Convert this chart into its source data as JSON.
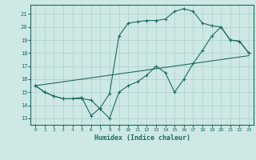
{
  "title": "",
  "xlabel": "Humidex (Indice chaleur)",
  "background_color": "#cde8e5",
  "grid_color": "#aacfcc",
  "line_color": "#1e6b65",
  "xlim": [
    -0.5,
    23.5
  ],
  "ylim": [
    12.5,
    21.7
  ],
  "yticks": [
    13,
    14,
    15,
    16,
    17,
    18,
    19,
    20,
    21
  ],
  "xticks": [
    0,
    1,
    2,
    3,
    4,
    5,
    6,
    7,
    8,
    9,
    10,
    11,
    12,
    13,
    14,
    15,
    16,
    17,
    18,
    19,
    20,
    21,
    22,
    23
  ],
  "line1_x": [
    0,
    1,
    2,
    3,
    4,
    5,
    6,
    7,
    8,
    9,
    10,
    11,
    12,
    13,
    14,
    15,
    16,
    17,
    18,
    19,
    20,
    21,
    22,
    23
  ],
  "line1_y": [
    15.5,
    15.0,
    14.7,
    14.5,
    14.5,
    14.6,
    13.2,
    13.8,
    14.9,
    19.3,
    20.3,
    20.4,
    20.5,
    20.5,
    20.6,
    21.2,
    21.4,
    21.2,
    20.3,
    20.1,
    20.0,
    19.0,
    18.9,
    18.0
  ],
  "line2_x": [
    0,
    1,
    2,
    3,
    4,
    5,
    6,
    7,
    8,
    9,
    10,
    11,
    12,
    13,
    14,
    15,
    16,
    17,
    18,
    19,
    20,
    21,
    22,
    23
  ],
  "line2_y": [
    15.5,
    15.0,
    14.7,
    14.5,
    14.5,
    14.5,
    14.4,
    13.7,
    13.0,
    15.0,
    15.5,
    15.8,
    16.3,
    17.0,
    16.5,
    15.0,
    16.0,
    17.2,
    18.2,
    19.3,
    20.0,
    19.0,
    18.9,
    18.0
  ],
  "line3_x": [
    0,
    23
  ],
  "line3_y": [
    15.5,
    17.8
  ]
}
